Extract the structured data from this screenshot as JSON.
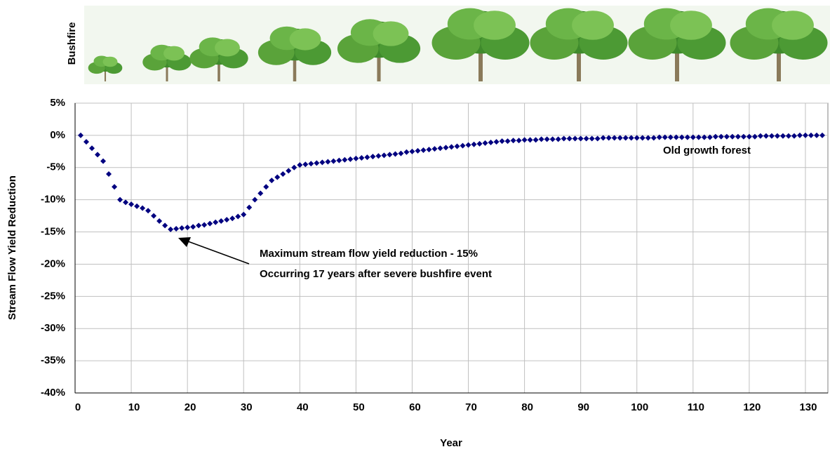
{
  "chart_data": {
    "type": "scatter",
    "banner_label": "Bushfire",
    "x_label": "Year",
    "y_label": "Stream Flow Yield Reduction",
    "annotations": [
      "Maximum stream flow yield reduction - 15%",
      "Occurring 17 years after severe bushfire event",
      "Old growth forest"
    ],
    "color": "#000080",
    "grid": true,
    "xlim": [
      0,
      134
    ],
    "ylim": [
      -40,
      5
    ],
    "xticks": [
      0,
      10,
      20,
      30,
      40,
      50,
      60,
      70,
      80,
      90,
      100,
      110,
      120,
      130
    ],
    "yticks": [
      {
        "value": 5,
        "label": "5%"
      },
      {
        "value": 0,
        "label": "0%"
      },
      {
        "value": -5,
        "label": "-5%"
      },
      {
        "value": -10,
        "label": "-10%"
      },
      {
        "value": -15,
        "label": "-15%"
      },
      {
        "value": -20,
        "label": "-20%"
      },
      {
        "value": -25,
        "label": "-25%"
      },
      {
        "value": -30,
        "label": "-30%"
      },
      {
        "value": -35,
        "label": "-35%"
      },
      {
        "value": -40,
        "label": "-40%"
      }
    ],
    "x": [
      1,
      2,
      3,
      4,
      5,
      6,
      7,
      8,
      9,
      10,
      11,
      12,
      13,
      14,
      15,
      16,
      17,
      18,
      19,
      20,
      21,
      22,
      23,
      24,
      25,
      26,
      27,
      28,
      29,
      30,
      31,
      32,
      33,
      34,
      35,
      36,
      37,
      38,
      39,
      40,
      41,
      42,
      43,
      44,
      45,
      46,
      47,
      48,
      49,
      50,
      51,
      52,
      53,
      54,
      55,
      56,
      57,
      58,
      59,
      60,
      61,
      62,
      63,
      64,
      65,
      66,
      67,
      68,
      69,
      70,
      71,
      72,
      73,
      74,
      75,
      76,
      77,
      78,
      79,
      80,
      81,
      82,
      83,
      84,
      85,
      86,
      87,
      88,
      89,
      90,
      91,
      92,
      93,
      94,
      95,
      96,
      97,
      98,
      99,
      100,
      101,
      102,
      103,
      104,
      105,
      106,
      107,
      108,
      109,
      110,
      111,
      112,
      113,
      114,
      115,
      116,
      117,
      118,
      119,
      120,
      121,
      122,
      123,
      124,
      125,
      126,
      127,
      128,
      129,
      130,
      131,
      132,
      133
    ],
    "values": [
      0,
      -1,
      -2,
      -3,
      -4,
      -6,
      -8,
      -10,
      -10.4,
      -10.7,
      -11,
      -11.3,
      -11.7,
      -12.5,
      -13.3,
      -14,
      -14.6,
      -14.5,
      -14.4,
      -14.3,
      -14.2,
      -14,
      -13.9,
      -13.7,
      -13.5,
      -13.3,
      -13.1,
      -12.9,
      -12.6,
      -12.3,
      -11.2,
      -10,
      -9,
      -8,
      -7,
      -6.5,
      -6,
      -5.5,
      -5,
      -4.6,
      -4.5,
      -4.4,
      -4.3,
      -4.2,
      -4.1,
      -4,
      -3.9,
      -3.8,
      -3.7,
      -3.6,
      -3.5,
      -3.4,
      -3.3,
      -3.2,
      -3.1,
      -3,
      -2.9,
      -2.8,
      -2.6,
      -2.5,
      -2.4,
      -2.3,
      -2.2,
      -2.1,
      -2,
      -1.9,
      -1.8,
      -1.7,
      -1.6,
      -1.5,
      -1.4,
      -1.3,
      -1.2,
      -1.1,
      -1,
      -0.9,
      -0.9,
      -0.8,
      -0.8,
      -0.7,
      -0.7,
      -0.7,
      -0.6,
      -0.6,
      -0.6,
      -0.6,
      -0.5,
      -0.5,
      -0.5,
      -0.5,
      -0.5,
      -0.5,
      -0.5,
      -0.4,
      -0.4,
      -0.4,
      -0.4,
      -0.4,
      -0.4,
      -0.4,
      -0.4,
      -0.4,
      -0.4,
      -0.3,
      -0.3,
      -0.3,
      -0.3,
      -0.3,
      -0.3,
      -0.3,
      -0.3,
      -0.3,
      -0.3,
      -0.2,
      -0.2,
      -0.2,
      -0.2,
      -0.2,
      -0.2,
      -0.2,
      -0.2,
      -0.1,
      -0.1,
      -0.1,
      -0.1,
      -0.1,
      -0.1,
      -0.1,
      0,
      0,
      0,
      0,
      0
    ]
  }
}
